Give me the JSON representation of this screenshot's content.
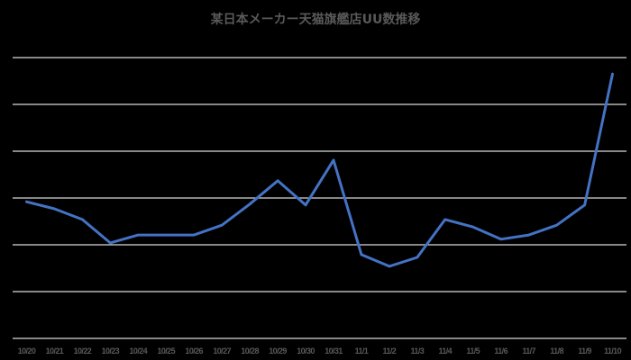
{
  "chart": {
    "title": "某日本メーカー天猫旗艦店UU数推移",
    "line_color": "#4472C4",
    "grid_color": "#D9D9D9",
    "label_color": "#595959",
    "background": "#000000"
  },
  "chart_data": {
    "type": "line",
    "title": "某日本メーカー天猫旗艦店UU数推移",
    "xlabel": "",
    "ylabel": "",
    "y_axis_labels_visible": false,
    "y_unit_note": "values expressed in gridline units (no y-axis tick labels shown)",
    "ylim": [
      0,
      6
    ],
    "grid": true,
    "gridline_count": 7,
    "legend": "none",
    "categories": [
      "10/20",
      "10/21",
      "10/22",
      "10/23",
      "10/24",
      "10/25",
      "10/26",
      "10/27",
      "10/28",
      "10/29",
      "10/30",
      "10/31",
      "11/1",
      "11/2",
      "11/3",
      "11/4",
      "11/5",
      "11/6",
      "11/7",
      "11/8",
      "11/9",
      "11/10"
    ],
    "series": [
      {
        "name": "UU数",
        "values": [
          2.92,
          2.77,
          2.54,
          2.04,
          2.21,
          2.21,
          2.21,
          2.42,
          2.87,
          3.37,
          2.85,
          3.81,
          1.79,
          1.54,
          1.73,
          2.54,
          2.38,
          2.12,
          2.21,
          2.42,
          2.85,
          5.65
        ]
      }
    ]
  }
}
